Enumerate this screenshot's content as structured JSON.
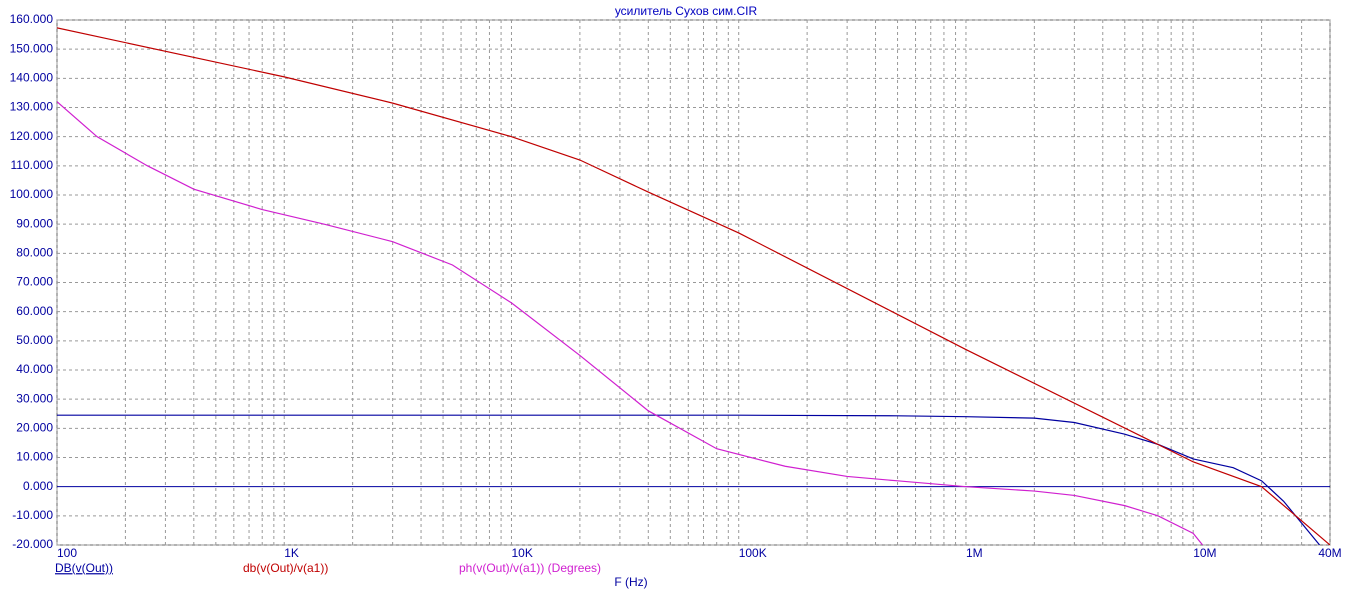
{
  "chart_data": {
    "type": "line",
    "title": "усилитель Сухов сим.CIR",
    "x_label": "F (Hz)",
    "xscale": "log",
    "grid": true,
    "xlim": [
      100,
      40000000
    ],
    "xticks": [
      {
        "value": 100,
        "label": "100"
      },
      {
        "value": 1000,
        "label": "1K"
      },
      {
        "value": 10000,
        "label": "10K"
      },
      {
        "value": 100000,
        "label": "100K"
      },
      {
        "value": 1000000,
        "label": "1M"
      },
      {
        "value": 10000000,
        "label": "10M"
      },
      {
        "value": 40000000,
        "label": "40M"
      }
    ],
    "ylim": [
      -20,
      160
    ],
    "yticks": [
      {
        "value": 160,
        "label": "160.000"
      },
      {
        "value": 150,
        "label": "150.000"
      },
      {
        "value": 140,
        "label": "140.000"
      },
      {
        "value": 130,
        "label": "130.000"
      },
      {
        "value": 120,
        "label": "120.000"
      },
      {
        "value": 110,
        "label": "110.000"
      },
      {
        "value": 100,
        "label": "100.000"
      },
      {
        "value": 90,
        "label": "90.000"
      },
      {
        "value": 80,
        "label": "80.000"
      },
      {
        "value": 70,
        "label": "70.000"
      },
      {
        "value": 60,
        "label": "60.000"
      },
      {
        "value": 50,
        "label": "50.000"
      },
      {
        "value": 40,
        "label": "40.000"
      },
      {
        "value": 30,
        "label": "30.000"
      },
      {
        "value": 20,
        "label": "20.000"
      },
      {
        "value": 10,
        "label": "10.000"
      },
      {
        "value": 0,
        "label": "0.000"
      },
      {
        "value": -10,
        "label": "-10.000"
      },
      {
        "value": -20,
        "label": "-20.000"
      }
    ],
    "series": [
      {
        "name": "DB(v(Out))",
        "color": "#0000a0",
        "x": [
          100,
          1000,
          10000,
          100000,
          500000,
          1000000,
          2000000,
          3000000,
          5000000,
          7000000,
          10000000,
          15000000,
          20000000,
          25000000,
          36000000
        ],
        "values": [
          24.5,
          24.5,
          24.5,
          24.5,
          24.3,
          24,
          23.5,
          22,
          18,
          14.5,
          9.5,
          6.5,
          2,
          -5,
          -20
        ]
      },
      {
        "name": "db(v(Out)/v(a1))",
        "color": "#c00000",
        "x": [
          100,
          1000,
          3000,
          10000,
          20000,
          40000,
          100000,
          1000000,
          10000000,
          20000000,
          40000000
        ],
        "values": [
          157.3,
          140.5,
          131.5,
          120,
          112,
          101,
          87,
          47,
          8.5,
          0,
          -20
        ]
      },
      {
        "name": "ph(v(Out)/v(a1)) (Degrees)",
        "color": "#d020d0",
        "x": [
          100,
          150,
          250,
          400,
          800,
          1500,
          3000,
          5500,
          10000,
          20000,
          40000,
          80000,
          160000,
          300000,
          500000,
          1000000,
          2000000,
          3000000,
          5000000,
          7000000,
          10000000,
          11000000
        ],
        "values": [
          132,
          120,
          110,
          102,
          95,
          90,
          84,
          76,
          63,
          45,
          26,
          13,
          7,
          3.5,
          2,
          0,
          -1.5,
          -3,
          -6.5,
          -10,
          -16,
          -20
        ]
      }
    ]
  }
}
